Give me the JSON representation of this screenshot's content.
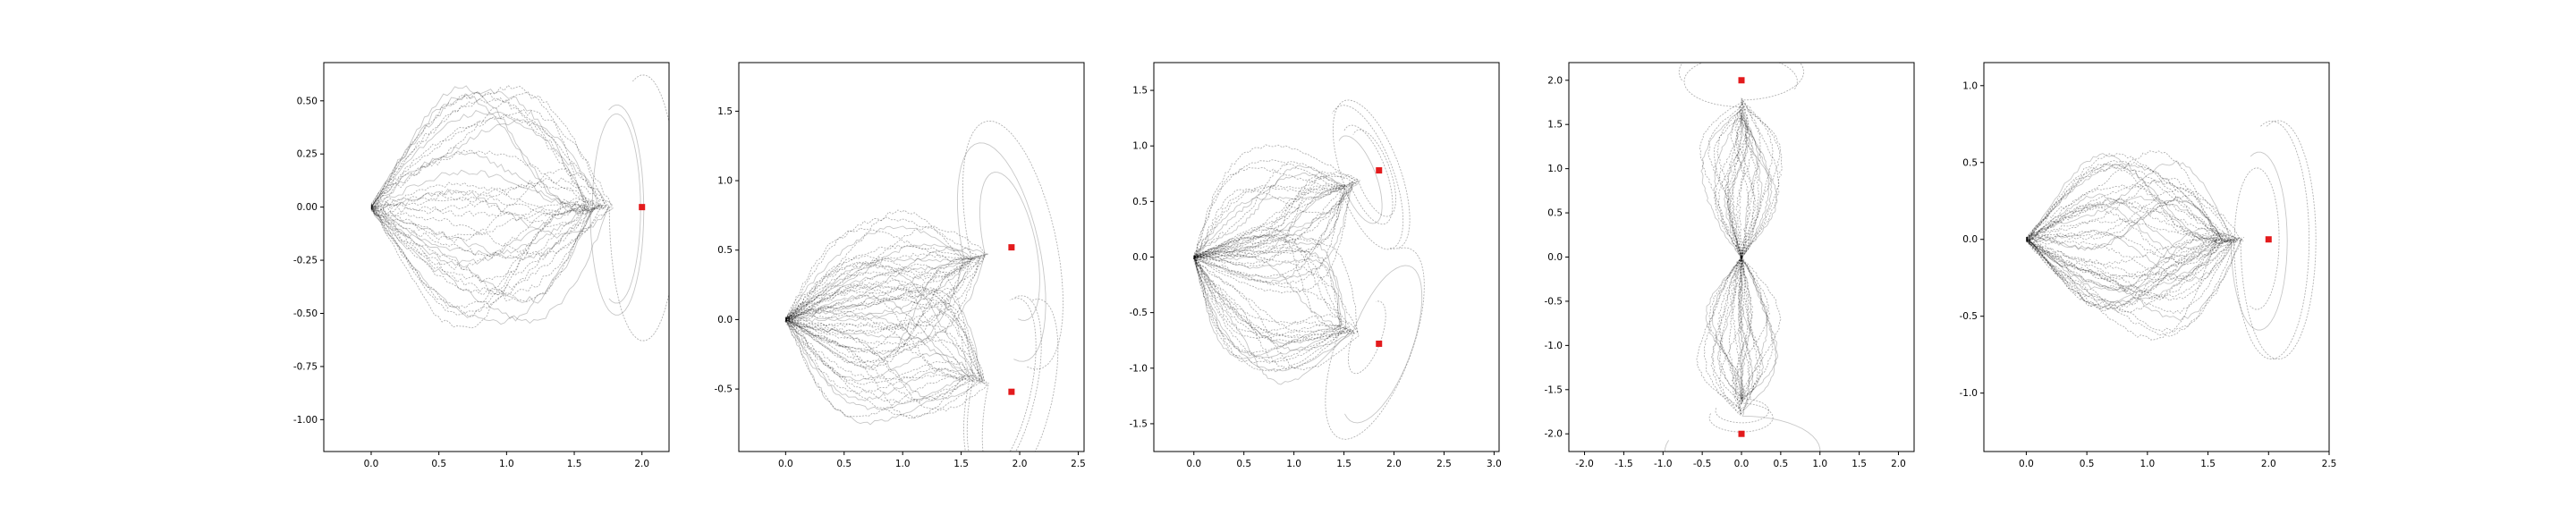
{
  "chart_data": [
    {
      "type": "line",
      "title": "",
      "xlabel": "",
      "ylabel": "",
      "xlim": [
        -0.35,
        2.2
      ],
      "ylim": [
        -1.15,
        0.68
      ],
      "xticks": [
        "0.0",
        "0.5",
        "1.0",
        "1.5",
        "2.0"
      ],
      "yticks": [
        "0.50",
        "0.25",
        "0.00",
        "-0.25",
        "-0.50",
        "-0.75",
        "-1.00"
      ],
      "start": [
        0.0,
        0.0
      ],
      "spread": 0.28,
      "seed": 11,
      "n_trajectories": 40,
      "targets": [
        [
          2.0,
          0.0
        ]
      ],
      "target_color": "#e31a1c",
      "line_color": "#000000",
      "grid": false,
      "legend": "none"
    },
    {
      "type": "line",
      "title": "",
      "xlabel": "",
      "ylabel": "",
      "xlim": [
        -0.4,
        2.55
      ],
      "ylim": [
        -0.95,
        1.85
      ],
      "xticks": [
        "0.0",
        "0.5",
        "1.0",
        "1.5",
        "2.0",
        "2.5"
      ],
      "yticks": [
        "1.5",
        "1.0",
        "0.5",
        "0.0",
        "-0.5"
      ],
      "start": [
        0.0,
        0.0
      ],
      "spread": 0.3,
      "seed": 23,
      "n_trajectories": 60,
      "targets": [
        [
          1.93,
          0.52
        ],
        [
          1.93,
          -0.52
        ]
      ],
      "target_color": "#e31a1c",
      "line_color": "#000000",
      "grid": false,
      "legend": "none"
    },
    {
      "type": "line",
      "title": "",
      "xlabel": "",
      "ylabel": "",
      "xlim": [
        -0.4,
        3.05
      ],
      "ylim": [
        -1.75,
        1.75
      ],
      "xticks": [
        "0.0",
        "0.5",
        "1.0",
        "1.5",
        "2.0",
        "2.5",
        "3.0"
      ],
      "yticks": [
        "1.5",
        "1.0",
        "0.5",
        "0.0",
        "-0.5",
        "-1.0",
        "-1.5"
      ],
      "start": [
        0.0,
        0.0
      ],
      "spread": 0.35,
      "seed": 37,
      "n_trajectories": 60,
      "targets": [
        [
          1.85,
          0.78
        ],
        [
          1.85,
          -0.78
        ]
      ],
      "target_color": "#e31a1c",
      "line_color": "#000000",
      "grid": false,
      "legend": "none"
    },
    {
      "type": "line",
      "title": "",
      "xlabel": "",
      "ylabel": "",
      "xlim": [
        -2.2,
        2.2
      ],
      "ylim": [
        -2.2,
        2.2
      ],
      "xticks": [
        "-2.0",
        "-1.5",
        "-1.0",
        "-0.5",
        "0.0",
        "0.5",
        "1.0",
        "1.5",
        "2.0"
      ],
      "yticks": [
        "2.0",
        "1.5",
        "1.0",
        "0.5",
        "0.0",
        "-0.5",
        "-1.0",
        "-1.5",
        "-2.0"
      ],
      "start": [
        0.0,
        0.0
      ],
      "spread": 0.25,
      "seed": 53,
      "n_trajectories": 60,
      "targets": [
        [
          0.0,
          2.0
        ],
        [
          0.0,
          -2.0
        ]
      ],
      "target_color": "#e31a1c",
      "line_color": "#000000",
      "grid": false,
      "legend": "none"
    },
    {
      "type": "line",
      "title": "",
      "xlabel": "",
      "ylabel": "",
      "xlim": [
        -0.35,
        2.5
      ],
      "ylim": [
        -1.38,
        1.15
      ],
      "xticks": [
        "0.0",
        "0.5",
        "1.0",
        "1.5",
        "2.0",
        "2.5"
      ],
      "yticks": [
        "1.0",
        "0.5",
        "0.0",
        "-0.5",
        "-1.0"
      ],
      "start": [
        0.0,
        0.0
      ],
      "spread": 0.3,
      "seed": 71,
      "n_trajectories": 50,
      "targets": [
        [
          2.0,
          0.0
        ]
      ],
      "target_color": "#e31a1c",
      "line_color": "#000000",
      "grid": false,
      "legend": "none"
    }
  ]
}
